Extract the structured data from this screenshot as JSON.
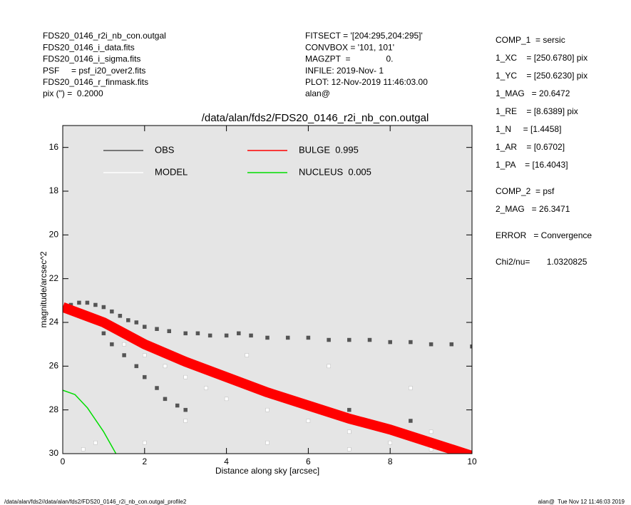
{
  "header": {
    "left": [
      "FDS20_0146_r2i_nb_con.outgal",
      "FDS20_0146_i_data.fits",
      "FDS20_0146_i_sigma.fits",
      "PSF     = psf_i20_over2.fits",
      "FDS20_0146_r_finmask.fits",
      "pix (\") =  0.2000"
    ],
    "center": [
      "FITSECT = '[204:295,204:295]'",
      "CONVBOX = '101, 101'",
      "MAGZPT  =               0.",
      "INFILE: 2019-Nov- 1",
      "PLOT: 12-Nov-2019 11:46:03.00",
      "alan@"
    ]
  },
  "params": [
    [
      "COMP_1  = sersic",
      "1_XC    = [250.6780] pix",
      "1_YC    = [250.6230] pix",
      "1_MAG   = 20.6472",
      "1_RE    = [8.6389] pix",
      "1_N     = [1.4458]",
      "1_AR    = [0.6702]",
      "1_PA    = [16.4043]"
    ],
    [
      "COMP_2  = psf",
      "2_MAG   = 26.3471"
    ],
    [
      "ERROR   = Convergence"
    ],
    [
      "Chi2/nu=       1.0320825"
    ]
  ],
  "footer": {
    "left": "/data/alan/fds2//data/alan/fds2/FDS20_0146_r2i_nb_con.outgal_profile2",
    "right": "alan@  Tue Nov 12 11:46:03 2019"
  },
  "chart_data": {
    "type": "scatter",
    "title": "/data/alan/fds2/FDS20_0146_r2i_nb_con.outgal",
    "xlabel": "Distance along sky [arcsec]",
    "ylabel": "magnitude/arcsec^2",
    "xlim": [
      0,
      10
    ],
    "ylim": [
      30,
      15
    ],
    "xticks": [
      0,
      2,
      4,
      6,
      8,
      10
    ],
    "yticks": [
      16,
      18,
      20,
      22,
      24,
      26,
      28,
      30
    ],
    "background": "#e5e5e5",
    "series": [
      {
        "name": "OBS",
        "color": "#555555",
        "draw": "points",
        "x": [
          0.2,
          0.4,
          0.6,
          0.8,
          1.0,
          1.2,
          1.4,
          1.6,
          1.8,
          2.0,
          2.3,
          2.6,
          3.0,
          3.3,
          3.6,
          4.0,
          4.3,
          4.6,
          5.0,
          5.5,
          6.0,
          6.5,
          7.0,
          7.5,
          8.0,
          8.5,
          9.0,
          9.5,
          10.0,
          1.0,
          1.2,
          1.5,
          1.8,
          2.0,
          2.3,
          2.5,
          2.8,
          3.0,
          7.0,
          8.5
        ],
        "values": [
          23.2,
          23.1,
          23.1,
          23.2,
          23.3,
          23.5,
          23.7,
          23.9,
          24.0,
          24.2,
          24.3,
          24.4,
          24.5,
          24.5,
          24.6,
          24.6,
          24.5,
          24.6,
          24.7,
          24.7,
          24.7,
          24.8,
          24.8,
          24.8,
          24.9,
          24.9,
          25.0,
          25.0,
          25.1,
          24.5,
          25.0,
          25.5,
          26.0,
          26.5,
          27.0,
          27.5,
          27.8,
          28.0,
          28.0,
          28.5
        ]
      },
      {
        "name": "MODEL",
        "color": "#ffffff",
        "draw": "points",
        "x": [
          1.5,
          2.0,
          2.5,
          3.0,
          3.5,
          4.0,
          5.0,
          6.0,
          7.0,
          8.0,
          9.0,
          10.0,
          3.0,
          5.0,
          7.0,
          9.0,
          4.5,
          6.5,
          8.5,
          2.0,
          0.5,
          0.8
        ],
        "values": [
          25.0,
          25.5,
          26.0,
          26.5,
          27.0,
          27.5,
          28.0,
          28.5,
          29.0,
          29.5,
          29.8,
          30.0,
          28.5,
          29.5,
          29.8,
          29.0,
          25.5,
          26.0,
          27.0,
          29.5,
          29.8,
          29.5
        ]
      },
      {
        "name": "BULGE  0.995",
        "color": "#ff0000",
        "draw": "band",
        "x": [
          0,
          1,
          2,
          3,
          4,
          5,
          6,
          7,
          8,
          9,
          10
        ],
        "values": [
          23.3,
          24.0,
          25.0,
          25.8,
          26.5,
          27.2,
          27.8,
          28.4,
          28.9,
          29.5,
          30.1
        ]
      },
      {
        "name": "NUCLEUS  0.005",
        "color": "#00dd00",
        "draw": "line",
        "x": [
          0,
          0.3,
          0.6,
          1.0,
          1.3
        ],
        "values": [
          27.1,
          27.3,
          27.9,
          29.0,
          30.0
        ]
      }
    ]
  }
}
